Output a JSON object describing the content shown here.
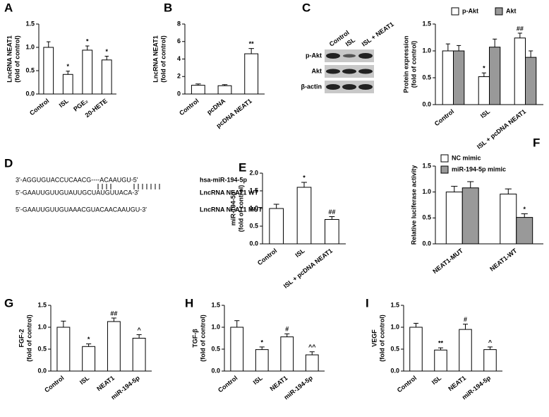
{
  "chart_data": [
    {
      "type": "bar",
      "label": "A",
      "ylabel": [
        "LncRNA NEAT1",
        "(fold of control)"
      ],
      "categories": [
        "Control",
        "ISL",
        "PGE₂",
        "20-HETE"
      ],
      "values": [
        1.0,
        0.42,
        0.94,
        0.73
      ],
      "errors": [
        0.12,
        0.07,
        0.09,
        0.08
      ],
      "annotations": [
        null,
        "*",
        "*",
        "*"
      ],
      "color": "#ffffff",
      "ylim": [
        0,
        1.5
      ],
      "yticks": [
        {
          "value": 0,
          "label": "0.0"
        },
        {
          "value": 0.5,
          "label": "0.5"
        },
        {
          "value": 1,
          "label": "1.0"
        },
        {
          "value": 1.5,
          "label": "1.5"
        }
      ]
    },
    {
      "type": "bar",
      "label": "B",
      "ylabel": [
        "LncRNA NEAT1",
        "(fold of control)"
      ],
      "categories": [
        "Control",
        "pcDNA",
        "pcDNA NEAT1"
      ],
      "values": [
        1.0,
        0.95,
        4.6
      ],
      "errors": [
        0.15,
        0.12,
        0.6
      ],
      "annotations": [
        null,
        null,
        "**"
      ],
      "color": "#ffffff",
      "ylim": [
        0,
        8
      ],
      "yticks": [
        0,
        2,
        4,
        6,
        8
      ]
    },
    {
      "type": "bar",
      "label": "C",
      "ylabel": [
        "Protein expression",
        "(fold of control)"
      ],
      "blot": {
        "lanes": [
          "Control",
          "ISL",
          "ISL + NEAT1"
        ],
        "rows": [
          "p-Akt",
          "Akt",
          "β-actin"
        ]
      },
      "categories": [
        "Control",
        "ISL",
        "ISL + pcDNA NEAT1"
      ],
      "series": [
        {
          "name": "p-Akt",
          "color": "#ffffff",
          "values": [
            1.0,
            0.52,
            1.24
          ],
          "errors": [
            0.13,
            0.07,
            0.09
          ],
          "annotations": [
            null,
            "*",
            "##"
          ]
        },
        {
          "name": "Akt",
          "color": "#999999",
          "values": [
            1.0,
            1.07,
            0.88
          ],
          "errors": [
            0.1,
            0.15,
            0.12
          ],
          "annotations": [
            null,
            null,
            null
          ]
        }
      ],
      "ylim": [
        0,
        1.5
      ],
      "yticks": [
        {
          "value": 0,
          "label": "0.0"
        },
        {
          "value": 0.5,
          "label": "0.5"
        },
        {
          "value": 1,
          "label": "1.0"
        },
        {
          "value": 1.5,
          "label": "1.5"
        }
      ]
    },
    {
      "type": "bar",
      "label": "E",
      "ylabel": [
        "miR-194-5p",
        "(fold of control)"
      ],
      "categories": [
        "Control",
        "ISL",
        "ISL + pcDNA NEAT1"
      ],
      "values": [
        1.0,
        1.6,
        0.69
      ],
      "errors": [
        0.12,
        0.14,
        0.08
      ],
      "annotations": [
        null,
        "*",
        "##"
      ],
      "color": "#ffffff",
      "ylim": [
        0,
        2
      ],
      "yticks": [
        {
          "value": 0,
          "label": "0.0"
        },
        {
          "value": 0.5,
          "label": "0.5"
        },
        {
          "value": 1,
          "label": "1.0"
        },
        {
          "value": 1.5,
          "label": "1.5"
        },
        {
          "value": 2,
          "label": "2.0"
        }
      ]
    },
    {
      "type": "bar",
      "label": "F",
      "ylabel": [
        "Relative luciferase activity"
      ],
      "categories": [
        "NEAT1-MUT",
        "NEAT1-WT"
      ],
      "series": [
        {
          "name": "NC mimic",
          "color": "#ffffff",
          "values": [
            1.0,
            0.96
          ],
          "errors": [
            0.11,
            0.1
          ],
          "annotations": [
            null,
            null
          ]
        },
        {
          "name": "miR-194-5p mimic",
          "color": "#999999",
          "values": [
            1.08,
            0.51
          ],
          "errors": [
            0.12,
            0.07
          ],
          "annotations": [
            null,
            "*"
          ]
        }
      ],
      "ylim": [
        0,
        1.5
      ],
      "yticks": [
        {
          "value": 0,
          "label": "0.0"
        },
        {
          "value": 0.5,
          "label": "0.5"
        },
        {
          "value": 1,
          "label": "1.0"
        },
        {
          "value": 1.5,
          "label": "1.5"
        }
      ]
    },
    {
      "type": "bar",
      "label": "G",
      "ylabel": [
        "FGF-2",
        "(fold of control)"
      ],
      "categories": [
        "Control",
        "ISL",
        "NEAT1",
        "miR-194-5p"
      ],
      "values": [
        1.0,
        0.56,
        1.13,
        0.75
      ],
      "errors": [
        0.14,
        0.06,
        0.08,
        0.08
      ],
      "annotations": [
        null,
        "*",
        "##",
        "^"
      ],
      "color": "#ffffff",
      "ylim": [
        0,
        1.5
      ],
      "yticks": [
        {
          "value": 0,
          "label": "0.0"
        },
        {
          "value": 0.5,
          "label": "0.5"
        },
        {
          "value": 1,
          "label": "1.0"
        },
        {
          "value": 1.5,
          "label": "1.5"
        }
      ]
    },
    {
      "type": "bar",
      "label": "H",
      "ylabel": [
        "TGF-β",
        "(fold of control)"
      ],
      "categories": [
        "Control",
        "ISL",
        "NEAT1",
        "miR-194-5p"
      ],
      "values": [
        1.0,
        0.49,
        0.78,
        0.37
      ],
      "errors": [
        0.15,
        0.06,
        0.07,
        0.07
      ],
      "annotations": [
        null,
        "*",
        "#",
        "^^"
      ],
      "color": "#ffffff",
      "ylim": [
        0,
        1.5
      ],
      "yticks": [
        {
          "value": 0,
          "label": "0.0"
        },
        {
          "value": 0.5,
          "label": "0.5"
        },
        {
          "value": 1,
          "label": "1.0"
        },
        {
          "value": 1.5,
          "label": "1.5"
        }
      ]
    },
    {
      "type": "bar",
      "label": "I",
      "ylabel": [
        "VEGF",
        "(fold of control)"
      ],
      "categories": [
        "Control",
        "ISL",
        "NEAT1",
        "miR-194-5p"
      ],
      "values": [
        1.0,
        0.48,
        0.95,
        0.49
      ],
      "errors": [
        0.09,
        0.05,
        0.12,
        0.06
      ],
      "annotations": [
        null,
        "**",
        "#",
        "^"
      ],
      "color": "#ffffff",
      "ylim": [
        0,
        1.5
      ],
      "yticks": [
        {
          "value": 0,
          "label": "0.0"
        },
        {
          "value": 0.5,
          "label": "0.5"
        },
        {
          "value": 1,
          "label": "1.0"
        },
        {
          "value": 1.5,
          "label": "1.5"
        }
      ]
    }
  ],
  "diagram": {
    "label": "D",
    "rows": [
      {
        "sequence": "3'-AGGUGUACCUCAACG----ACAAUGU-5'",
        "name": "hsa-miR-194-5p"
      },
      {
        "sequence": "5'-GAAUUGUUGUAUUGCUAUGUUACA-3'",
        "name": "LncRNA NEAT1 WT"
      },
      {
        "sequence": "5'-GAAUUGUUGUAAACGUACAACAAUGU-3'",
        "name": "LncRNA NEAT1 MUT"
      }
    ]
  }
}
